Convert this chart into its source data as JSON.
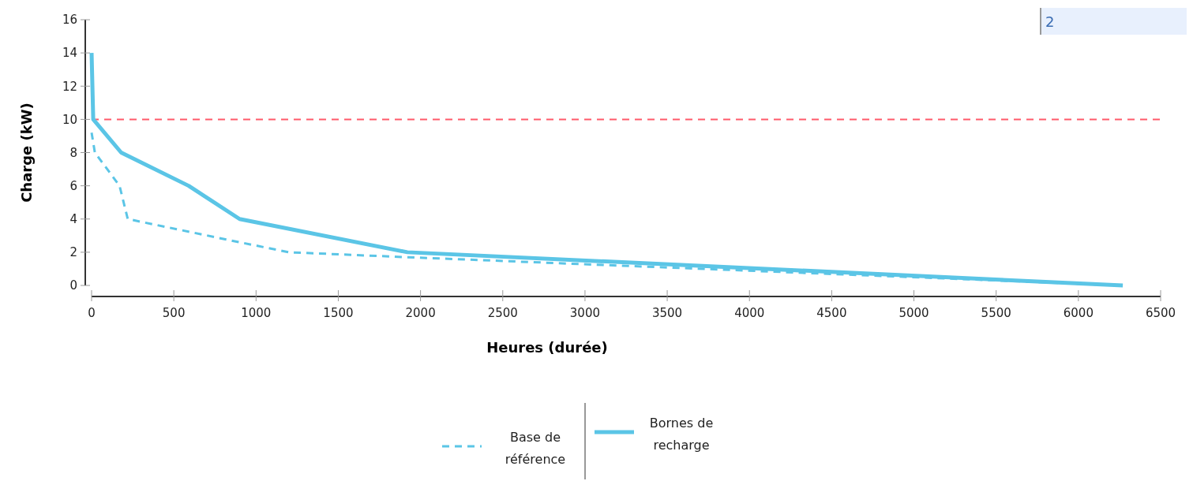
{
  "chart_data": {
    "type": "line",
    "xlabel": "Heures (durée)",
    "ylabel": "Charge (kW)",
    "xlim": [
      0,
      6500
    ],
    "xticks": [
      0,
      500,
      1000,
      1500,
      2000,
      2500,
      3000,
      3500,
      4000,
      4500,
      5000,
      5500,
      6000,
      6500
    ],
    "ylim": [
      0,
      16
    ],
    "yticks": [
      0,
      2,
      4,
      6,
      8,
      10,
      12,
      14,
      16
    ],
    "grid": false,
    "legend": "bottom",
    "annotations": [
      "2"
    ],
    "ref_lines": [
      {
        "axis": "y",
        "value": 10,
        "color": "#ff5a6a",
        "line_style": "dashed"
      }
    ],
    "series": [
      {
        "name": "Base de référence",
        "color": "#5bc5e6",
        "line_style": "dashed",
        "x": [
          0,
          20,
          170,
          220,
          900,
          1200,
          1920,
          6270
        ],
        "values": [
          9.2,
          8,
          6,
          4,
          2.6,
          2,
          1.7,
          0
        ]
      },
      {
        "name": "Bornes de recharge",
        "color": "#5bc5e6",
        "line_style": "solid",
        "x": [
          0,
          10,
          180,
          590,
          900,
          1920,
          6270
        ],
        "values": [
          14,
          10,
          8,
          6,
          4,
          2,
          0
        ]
      }
    ]
  }
}
